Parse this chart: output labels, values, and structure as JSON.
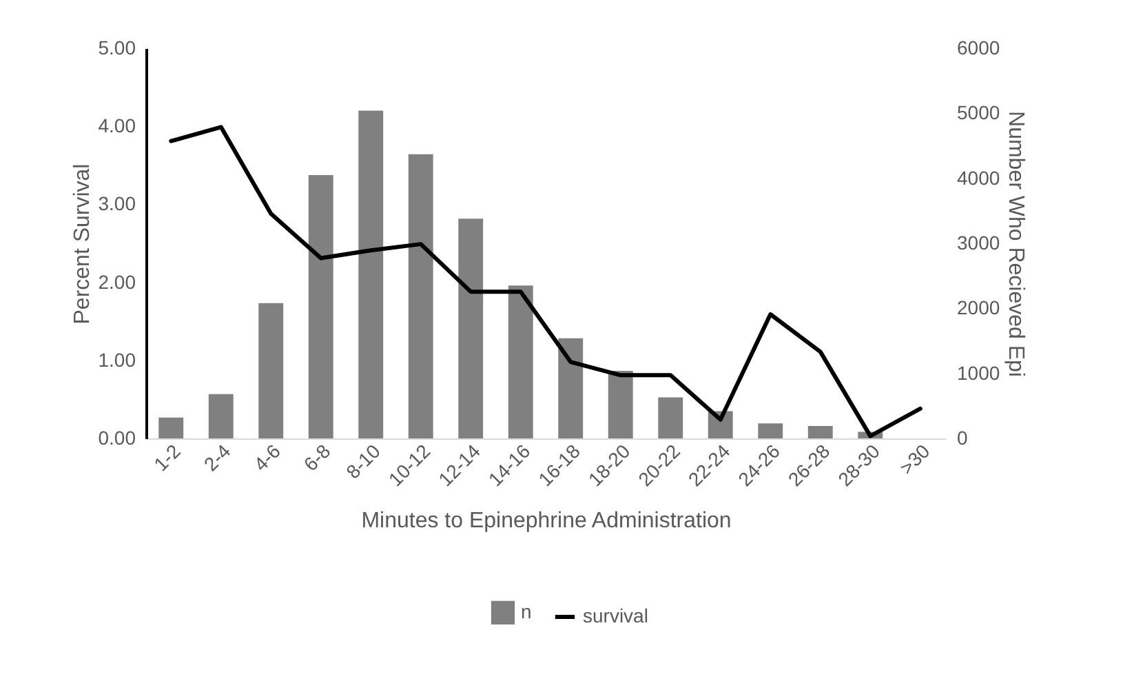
{
  "chart_data": {
    "type": "bar",
    "xlabel": "Minutes to Epinephrine Administration",
    "ylabel": "Percent Survival",
    "y2label": "Number Who Recieved Epi",
    "categories": [
      "1-2",
      "2-4",
      "4-6",
      "6-8",
      "8-10",
      "10-12",
      "12-14",
      "14-16",
      "16-18",
      "18-20",
      "20-22",
      "22-24",
      "24-26",
      "26-28",
      "28-30",
      ">30"
    ],
    "series": [
      {
        "name": "n",
        "axis": "y2",
        "color": "#808080",
        "values": [
          320,
          680,
          2080,
          4050,
          5040,
          4370,
          3380,
          2350,
          1540,
          1040,
          630,
          420,
          230,
          190,
          100,
          0
        ]
      },
      {
        "name": "survival",
        "type": "line",
        "color": "#000000",
        "values": [
          3.81,
          3.99,
          2.88,
          2.31,
          2.41,
          2.49,
          1.88,
          1.88,
          0.98,
          0.81,
          0.81,
          0.24,
          1.59,
          1.11,
          0.03,
          0.38
        ]
      }
    ],
    "ylim": [
      0,
      5
    ],
    "yticks": [
      {
        "value": 0,
        "label": "0.00"
      },
      {
        "value": 1,
        "label": "1.00"
      },
      {
        "value": 2,
        "label": "2.00"
      },
      {
        "value": 3,
        "label": "3.00"
      },
      {
        "value": 4,
        "label": "4.00"
      },
      {
        "value": 5,
        "label": "5.00"
      }
    ],
    "y2lim": [
      0,
      6000
    ],
    "y2ticks": [
      0,
      1000,
      2000,
      3000,
      4000,
      5000,
      6000
    ],
    "legend": "bottom",
    "grid": false
  }
}
